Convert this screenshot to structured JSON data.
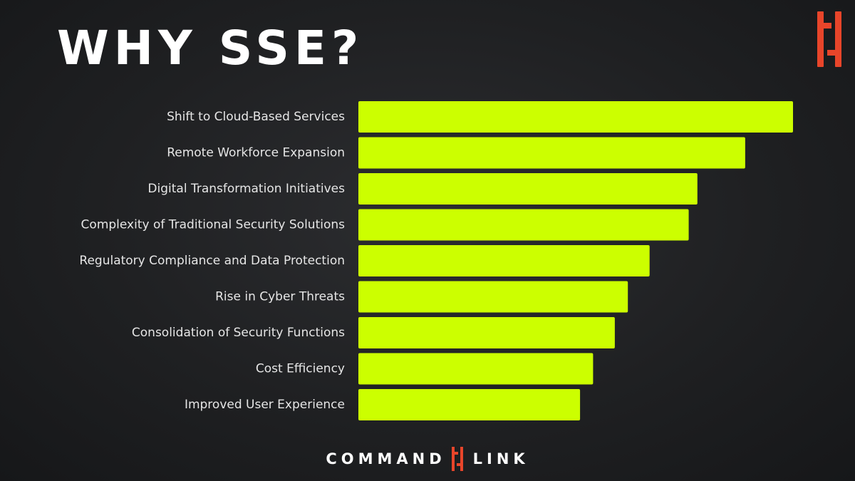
{
  "title": "WHY SSE?",
  "colors": {
    "title": "#ffffff",
    "label": "#e6e6e6",
    "bar": "#ccff00",
    "brand": "#e8452a",
    "footer": "#ffffff"
  },
  "brand": {
    "logo_icon": "commandlink-bracket-icon",
    "word1": "COMMAND",
    "word2": "LINK"
  },
  "chart_data": {
    "type": "bar",
    "orientation": "horizontal",
    "title": "WHY SSE?",
    "xlabel": "",
    "ylabel": "",
    "grid": false,
    "legend": "none",
    "xlim": [
      0,
      100
    ],
    "categories": [
      "Shift to Cloud-Based Services",
      "Remote Workforce Expansion",
      "Digital Transformation Initiatives",
      "Complexity of Traditional Security Solutions",
      "Regulatory Compliance and Data Protection",
      "Rise in Cyber Threats",
      "Consolidation of Security Functions",
      "Cost Efficiency",
      "Improved User Experience"
    ],
    "values": [
      100,
      89,
      78,
      76,
      67,
      62,
      59,
      54,
      51
    ]
  }
}
